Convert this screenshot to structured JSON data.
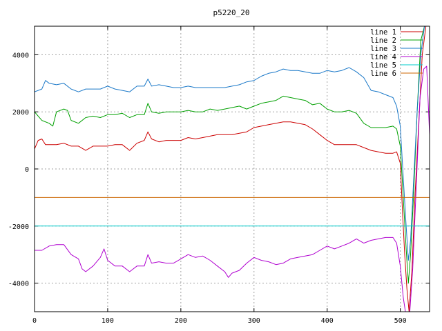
{
  "chart_data": {
    "type": "line",
    "title": "p5220_20",
    "xlabel": "",
    "ylabel": "",
    "xlim": [
      0,
      540
    ],
    "ylim": [
      -5000,
      5000
    ],
    "xticks": [
      0,
      100,
      200,
      300,
      400,
      500
    ],
    "yticks": [
      -4000,
      -2000,
      0,
      2000,
      4000
    ],
    "grid": true,
    "legend_position": "top-right",
    "series": [
      {
        "name": "line 1",
        "color": "#cc0000",
        "points": [
          [
            0,
            700
          ],
          [
            5,
            1000
          ],
          [
            10,
            1050
          ],
          [
            15,
            850
          ],
          [
            20,
            850
          ],
          [
            30,
            850
          ],
          [
            40,
            900
          ],
          [
            50,
            800
          ],
          [
            60,
            800
          ],
          [
            70,
            650
          ],
          [
            80,
            800
          ],
          [
            90,
            800
          ],
          [
            100,
            800
          ],
          [
            110,
            850
          ],
          [
            120,
            850
          ],
          [
            130,
            650
          ],
          [
            140,
            900
          ],
          [
            150,
            1000
          ],
          [
            155,
            1300
          ],
          [
            160,
            1050
          ],
          [
            170,
            950
          ],
          [
            180,
            1000
          ],
          [
            190,
            1000
          ],
          [
            200,
            1000
          ],
          [
            210,
            1100
          ],
          [
            220,
            1050
          ],
          [
            230,
            1100
          ],
          [
            240,
            1150
          ],
          [
            250,
            1200
          ],
          [
            260,
            1200
          ],
          [
            270,
            1200
          ],
          [
            280,
            1250
          ],
          [
            290,
            1300
          ],
          [
            300,
            1450
          ],
          [
            310,
            1500
          ],
          [
            320,
            1550
          ],
          [
            330,
            1600
          ],
          [
            340,
            1650
          ],
          [
            350,
            1650
          ],
          [
            360,
            1600
          ],
          [
            370,
            1550
          ],
          [
            380,
            1400
          ],
          [
            390,
            1200
          ],
          [
            400,
            1000
          ],
          [
            410,
            850
          ],
          [
            420,
            850
          ],
          [
            430,
            850
          ],
          [
            440,
            850
          ],
          [
            450,
            750
          ],
          [
            460,
            650
          ],
          [
            470,
            600
          ],
          [
            480,
            550
          ],
          [
            490,
            550
          ],
          [
            495,
            600
          ],
          [
            500,
            200
          ],
          [
            503,
            -1500
          ],
          [
            506,
            -3000
          ],
          [
            509,
            -4200
          ],
          [
            512,
            -5000
          ],
          [
            516,
            -3500
          ],
          [
            520,
            -1000
          ],
          [
            525,
            1500
          ],
          [
            530,
            4000
          ],
          [
            535,
            5000
          ]
        ]
      },
      {
        "name": "line 2",
        "color": "#00a000",
        "points": [
          [
            0,
            2000
          ],
          [
            10,
            1700
          ],
          [
            20,
            1600
          ],
          [
            25,
            1500
          ],
          [
            30,
            2000
          ],
          [
            40,
            2100
          ],
          [
            45,
            2050
          ],
          [
            50,
            1700
          ],
          [
            60,
            1600
          ],
          [
            70,
            1800
          ],
          [
            80,
            1850
          ],
          [
            90,
            1800
          ],
          [
            100,
            1900
          ],
          [
            110,
            1900
          ],
          [
            120,
            1950
          ],
          [
            130,
            1800
          ],
          [
            140,
            1900
          ],
          [
            150,
            1900
          ],
          [
            155,
            2300
          ],
          [
            160,
            2000
          ],
          [
            170,
            1950
          ],
          [
            180,
            2000
          ],
          [
            190,
            2000
          ],
          [
            200,
            2000
          ],
          [
            210,
            2050
          ],
          [
            220,
            2000
          ],
          [
            230,
            2000
          ],
          [
            240,
            2100
          ],
          [
            250,
            2050
          ],
          [
            260,
            2100
          ],
          [
            270,
            2150
          ],
          [
            280,
            2200
          ],
          [
            290,
            2100
          ],
          [
            300,
            2200
          ],
          [
            310,
            2300
          ],
          [
            320,
            2350
          ],
          [
            330,
            2400
          ],
          [
            340,
            2550
          ],
          [
            350,
            2500
          ],
          [
            360,
            2450
          ],
          [
            370,
            2400
          ],
          [
            380,
            2250
          ],
          [
            390,
            2300
          ],
          [
            400,
            2100
          ],
          [
            410,
            2000
          ],
          [
            420,
            2000
          ],
          [
            430,
            2050
          ],
          [
            440,
            1950
          ],
          [
            450,
            1600
          ],
          [
            460,
            1450
          ],
          [
            470,
            1450
          ],
          [
            480,
            1450
          ],
          [
            490,
            1500
          ],
          [
            495,
            1400
          ],
          [
            500,
            800
          ],
          [
            504,
            -1000
          ],
          [
            508,
            -2800
          ],
          [
            511,
            -4000
          ],
          [
            514,
            -3000
          ],
          [
            518,
            -1000
          ],
          [
            523,
            2000
          ],
          [
            528,
            4500
          ],
          [
            533,
            5000
          ]
        ]
      },
      {
        "name": "line 3",
        "color": "#1a78c8",
        "points": [
          [
            0,
            2700
          ],
          [
            10,
            2800
          ],
          [
            15,
            3100
          ],
          [
            20,
            3000
          ],
          [
            30,
            2950
          ],
          [
            40,
            3000
          ],
          [
            50,
            2800
          ],
          [
            60,
            2700
          ],
          [
            70,
            2800
          ],
          [
            80,
            2800
          ],
          [
            90,
            2800
          ],
          [
            100,
            2900
          ],
          [
            110,
            2800
          ],
          [
            120,
            2750
          ],
          [
            130,
            2700
          ],
          [
            140,
            2900
          ],
          [
            150,
            2900
          ],
          [
            155,
            3150
          ],
          [
            160,
            2900
          ],
          [
            170,
            2950
          ],
          [
            180,
            2900
          ],
          [
            190,
            2850
          ],
          [
            200,
            2850
          ],
          [
            210,
            2900
          ],
          [
            220,
            2850
          ],
          [
            230,
            2850
          ],
          [
            240,
            2850
          ],
          [
            250,
            2850
          ],
          [
            260,
            2850
          ],
          [
            270,
            2900
          ],
          [
            280,
            2950
          ],
          [
            290,
            3050
          ],
          [
            300,
            3100
          ],
          [
            310,
            3250
          ],
          [
            320,
            3350
          ],
          [
            330,
            3400
          ],
          [
            340,
            3500
          ],
          [
            350,
            3450
          ],
          [
            360,
            3450
          ],
          [
            370,
            3400
          ],
          [
            380,
            3350
          ],
          [
            390,
            3350
          ],
          [
            400,
            3450
          ],
          [
            410,
            3400
          ],
          [
            420,
            3450
          ],
          [
            430,
            3550
          ],
          [
            440,
            3400
          ],
          [
            450,
            3200
          ],
          [
            460,
            2750
          ],
          [
            470,
            2700
          ],
          [
            480,
            2600
          ],
          [
            490,
            2500
          ],
          [
            495,
            2200
          ],
          [
            500,
            1500
          ],
          [
            504,
            -300
          ],
          [
            508,
            -2000
          ],
          [
            511,
            -3200
          ],
          [
            514,
            -2500
          ],
          [
            518,
            -500
          ],
          [
            523,
            2000
          ],
          [
            528,
            4000
          ],
          [
            533,
            5000
          ]
        ]
      },
      {
        "name": "line 4",
        "color": "#b000d0",
        "points": [
          [
            0,
            -2850
          ],
          [
            10,
            -2850
          ],
          [
            20,
            -2700
          ],
          [
            30,
            -2650
          ],
          [
            40,
            -2650
          ],
          [
            50,
            -3000
          ],
          [
            60,
            -3150
          ],
          [
            65,
            -3500
          ],
          [
            70,
            -3600
          ],
          [
            80,
            -3400
          ],
          [
            90,
            -3100
          ],
          [
            95,
            -2800
          ],
          [
            100,
            -3200
          ],
          [
            110,
            -3400
          ],
          [
            120,
            -3400
          ],
          [
            130,
            -3600
          ],
          [
            140,
            -3400
          ],
          [
            150,
            -3400
          ],
          [
            155,
            -3000
          ],
          [
            160,
            -3300
          ],
          [
            170,
            -3250
          ],
          [
            180,
            -3300
          ],
          [
            190,
            -3300
          ],
          [
            200,
            -3150
          ],
          [
            210,
            -3000
          ],
          [
            220,
            -3100
          ],
          [
            230,
            -3050
          ],
          [
            240,
            -3200
          ],
          [
            250,
            -3400
          ],
          [
            260,
            -3600
          ],
          [
            265,
            -3800
          ],
          [
            270,
            -3650
          ],
          [
            280,
            -3550
          ],
          [
            290,
            -3300
          ],
          [
            300,
            -3100
          ],
          [
            310,
            -3200
          ],
          [
            320,
            -3250
          ],
          [
            330,
            -3350
          ],
          [
            340,
            -3300
          ],
          [
            350,
            -3150
          ],
          [
            360,
            -3100
          ],
          [
            370,
            -3050
          ],
          [
            380,
            -3000
          ],
          [
            390,
            -2850
          ],
          [
            400,
            -2700
          ],
          [
            410,
            -2800
          ],
          [
            420,
            -2700
          ],
          [
            430,
            -2600
          ],
          [
            440,
            -2450
          ],
          [
            450,
            -2600
          ],
          [
            460,
            -2500
          ],
          [
            470,
            -2450
          ],
          [
            480,
            -2400
          ],
          [
            490,
            -2400
          ],
          [
            495,
            -2600
          ],
          [
            500,
            -3400
          ],
          [
            504,
            -4500
          ],
          [
            507,
            -5000
          ],
          [
            513,
            -5000
          ],
          [
            517,
            -3500
          ],
          [
            522,
            -500
          ],
          [
            527,
            2500
          ],
          [
            532,
            3500
          ],
          [
            536,
            3600
          ],
          [
            540,
            1200
          ]
        ]
      },
      {
        "name": "line 5",
        "color": "#00cccc",
        "points": [
          [
            0,
            -2000
          ],
          [
            540,
            -2000
          ]
        ]
      },
      {
        "name": "line 6",
        "color": "#cc6600",
        "points": [
          [
            0,
            -1000
          ],
          [
            540,
            -1000
          ]
        ]
      }
    ]
  }
}
